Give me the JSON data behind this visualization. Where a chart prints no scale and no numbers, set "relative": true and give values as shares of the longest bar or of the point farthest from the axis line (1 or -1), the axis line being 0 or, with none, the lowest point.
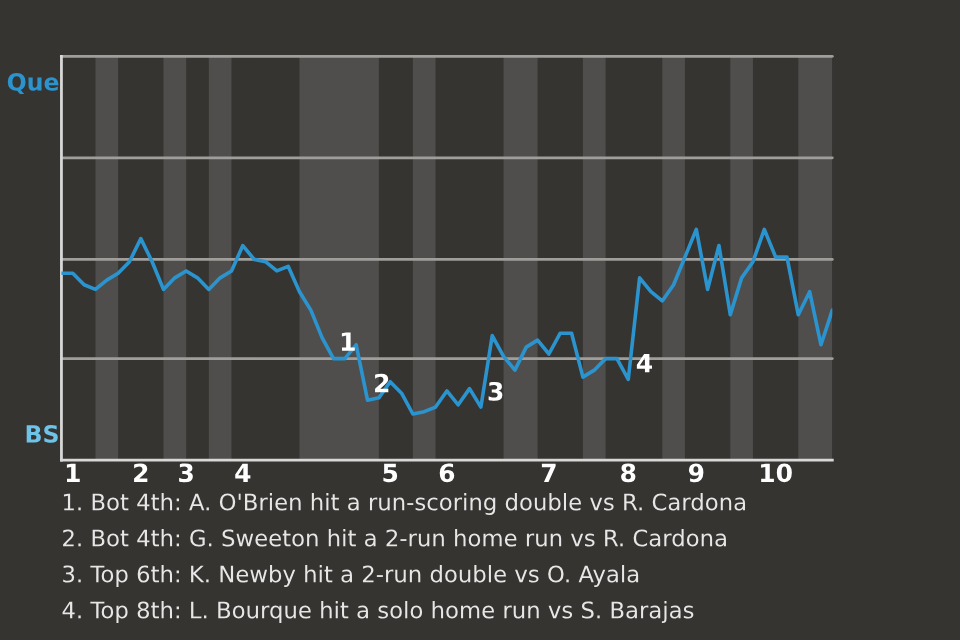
{
  "chart_data": {
    "type": "line",
    "color": "#2b94cf",
    "relative": true,
    "categories": [
      null,
      "1",
      null,
      null,
      null,
      null,
      null,
      "2",
      null,
      null,
      null,
      "3",
      null,
      null,
      null,
      null,
      "4",
      null,
      null,
      null,
      null,
      null,
      null,
      null,
      null,
      null,
      null,
      null,
      null,
      "5",
      null,
      null,
      null,
      null,
      "6",
      null,
      null,
      null,
      null,
      null,
      null,
      null,
      null,
      "7",
      null,
      null,
      null,
      null,
      null,
      null,
      "8",
      null,
      null,
      null,
      null,
      null,
      "9",
      null,
      null,
      null,
      null,
      null,
      null,
      "10",
      null,
      null,
      null,
      null,
      null
    ],
    "values": [
      0.81,
      0.81,
      0.76,
      0.74,
      0.78,
      0.81,
      0.86,
      0.96,
      0.86,
      0.74,
      0.79,
      0.82,
      0.79,
      0.74,
      0.79,
      0.82,
      0.93,
      0.87,
      0.86,
      0.82,
      0.84,
      0.73,
      0.65,
      0.53,
      0.44,
      0.44,
      0.5,
      0.26,
      0.27,
      0.34,
      0.29,
      0.2,
      0.21,
      0.23,
      0.3,
      0.24,
      0.31,
      0.23,
      0.54,
      0.45,
      0.39,
      0.49,
      0.52,
      0.46,
      0.55,
      0.55,
      0.36,
      0.39,
      0.44,
      0.44,
      0.35,
      0.79,
      0.73,
      0.69,
      0.76,
      0.88,
      1,
      0.74,
      0.93,
      0.63,
      0.79,
      0.86,
      1,
      0.88,
      0.88,
      0.63,
      0.73,
      0.5,
      0.65
    ],
    "ref_lines": [
      {
        "axis": "y",
        "value": 0.44,
        "color": "#a09e9b"
      },
      {
        "axis": "y",
        "value": 0.87,
        "color": "#a09e9b"
      },
      {
        "axis": "y",
        "value": 1.31,
        "color": "#a09e9b"
      },
      {
        "axis": "y",
        "value": 1.75,
        "color": "#a09e9b"
      }
    ],
    "annotations": [
      "Que",
      "BS",
      {
        "text": "1",
        "y": 0.44
      },
      {
        "text": "2",
        "y": 0.26
      },
      "3",
      "4",
      "1. Bot 4th: A. O'Brien hit a run-scoring double vs R. Cardona",
      "2. Bot 4th: G. Sweeton hit a 2-run home run vs R. Cardona",
      "3. Top 6th: K. Newby hit a 2-run double vs O. Ayala",
      "4. Top 8th: L. Bourque hit a solo home run vs S. Barajas"
    ]
  }
}
